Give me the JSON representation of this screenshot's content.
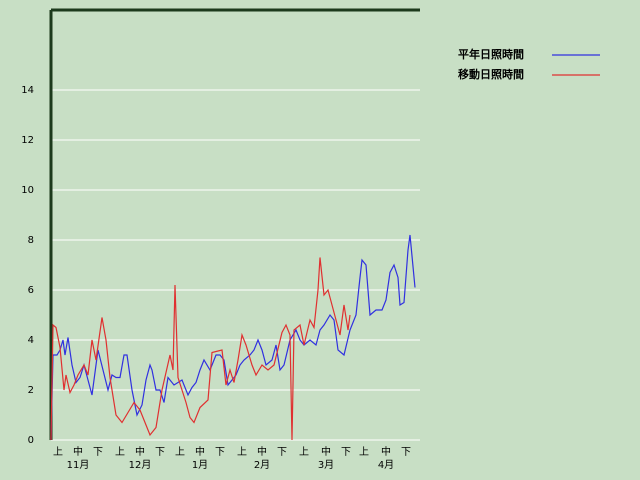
{
  "chart_data": {
    "type": "line",
    "xlim": [
      0,
      184.5
    ],
    "ylim": [
      0,
      17.2
    ],
    "yticks": [
      0,
      2,
      4,
      6,
      8,
      10,
      12,
      14
    ],
    "grid": true,
    "legend": "upper right",
    "xticks": [
      {
        "value": 3.5,
        "label": "上"
      },
      {
        "value": 13.5,
        "label": "中"
      },
      {
        "value": 23.5,
        "label": "下"
      },
      {
        "value": 34.5,
        "label": "上"
      },
      {
        "value": 44.5,
        "label": "中"
      },
      {
        "value": 54.5,
        "label": "下"
      },
      {
        "value": 64.5,
        "label": "上"
      },
      {
        "value": 74.5,
        "label": "中"
      },
      {
        "value": 84.5,
        "label": "下"
      },
      {
        "value": 95.5,
        "label": "上"
      },
      {
        "value": 105.5,
        "label": "中"
      },
      {
        "value": 115.5,
        "label": "下"
      },
      {
        "value": 126.5,
        "label": "上"
      },
      {
        "value": 137.5,
        "label": "中"
      },
      {
        "value": 147.5,
        "label": "下"
      },
      {
        "value": 156.5,
        "label": "上"
      },
      {
        "value": 167.5,
        "label": "中"
      },
      {
        "value": 177.5,
        "label": "下"
      }
    ],
    "month_ticks": [
      {
        "value": 13.5,
        "label": "11月"
      },
      {
        "value": 44.5,
        "label": "12月"
      },
      {
        "value": 74.5,
        "label": "1月"
      },
      {
        "value": 105.5,
        "label": "2月"
      },
      {
        "value": 137.5,
        "label": "3月"
      },
      {
        "value": 167.5,
        "label": "4月"
      }
    ],
    "series": [
      {
        "name": "平年日照時間",
        "color": "#3030e0",
        "x": [
          0,
          1,
          3,
          4.5,
          6,
          7,
          8.5,
          10.5,
          12.5,
          14.5,
          16.5,
          18.5,
          20.5,
          23.5,
          26,
          28.5,
          30.5,
          32.5,
          34.5,
          36.5,
          38,
          40.5,
          43,
          45.5,
          47.5,
          49.5,
          50.5,
          52.5,
          54.5,
          56.5,
          58.5,
          61.5,
          63.5,
          65.5,
          68.5,
          70.5,
          72.5,
          74.5,
          76.5,
          79.5,
          82.5,
          84.5,
          86.5,
          88.5,
          90.5,
          92.5,
          94.5,
          96.5,
          99.5,
          101.5,
          103.5,
          105.5,
          107.5,
          110.5,
          112.5,
          114.5,
          116.5,
          119.5,
          122.5,
          124.5,
          126.5,
          129.5,
          132.5,
          134.5,
          136.5,
          139.5,
          141.5,
          143.5,
          146.5,
          149.5,
          152.5,
          154.5,
          155.5,
          157.5,
          159.5,
          162.5,
          165.5,
          167.5,
          169.5,
          171.5,
          173.5,
          174.5,
          176.5,
          178.5,
          179.5,
          182
        ],
        "values": [
          0,
          3.4,
          3.4,
          3.6,
          4,
          3.4,
          4.1,
          3,
          2.3,
          2.5,
          3,
          2.4,
          1.8,
          3.6,
          2.8,
          2,
          2.6,
          2.5,
          2.5,
          3.4,
          3.4,
          2,
          1,
          1.4,
          2.4,
          3,
          2.8,
          2,
          2,
          1.5,
          2.5,
          2.2,
          2.3,
          2.4,
          1.8,
          2.1,
          2.3,
          2.8,
          3.2,
          2.8,
          3.4,
          3.4,
          3.2,
          2.2,
          2.4,
          2.6,
          3,
          3.2,
          3.4,
          3.6,
          4,
          3.6,
          3,
          3.2,
          3.8,
          2.8,
          3,
          4,
          4.4,
          4,
          3.8,
          4,
          3.8,
          4.4,
          4.6,
          5,
          4.8,
          3.6,
          3.4,
          4.4,
          5,
          6.5,
          7.2,
          7,
          5,
          5.2,
          5.2,
          5.6,
          6.7,
          7,
          6.5,
          5.4,
          5.5,
          7.6,
          8.2,
          6.1
        ]
      },
      {
        "name": "移動日照時間",
        "color": "#e03030",
        "x": [
          0,
          1,
          2.5,
          4.5,
          6.5,
          7.5,
          9.5,
          11.5,
          13.5,
          16.5,
          18.5,
          20.5,
          22.5,
          25.5,
          27.5,
          29.5,
          32.5,
          35.5,
          38.5,
          41.5,
          44.5,
          47.5,
          49.5,
          52.5,
          55.5,
          59.5,
          61,
          62,
          63.5,
          65.5,
          67.5,
          69.5,
          71.5,
          74.5,
          78.5,
          80.5,
          85.5,
          87.5,
          89.5,
          91.5,
          93.5,
          95.5,
          97.5,
          100.5,
          102.5,
          105.5,
          108.5,
          111.5,
          115.5,
          117.5,
          119.5,
          120.5,
          121.5,
          124.5,
          126.5,
          129.5,
          131.5,
          133.5,
          134.5,
          136.5,
          138.5,
          140.5,
          144.5,
          146.5,
          148.5,
          149.5
        ],
        "values": [
          0,
          4.6,
          4.5,
          3.7,
          2,
          2.6,
          1.9,
          2.2,
          2.6,
          3,
          2.6,
          4,
          3.2,
          4.9,
          4,
          2.5,
          1,
          0.7,
          1.1,
          1.5,
          1.2,
          0.6,
          0.2,
          0.5,
          2,
          3.4,
          2.8,
          6.2,
          2.5,
          2,
          1.5,
          0.9,
          0.7,
          1.3,
          1.6,
          3.5,
          3.6,
          2.2,
          2.8,
          2.3,
          3.2,
          4.2,
          3.8,
          3,
          2.6,
          3,
          2.8,
          3,
          4.3,
          4.6,
          4.2,
          0,
          4.4,
          4.6,
          3.8,
          4.8,
          4.5,
          6,
          7.3,
          5.8,
          6,
          5.4,
          4.2,
          5.4,
          4.4,
          5
        ]
      }
    ]
  }
}
